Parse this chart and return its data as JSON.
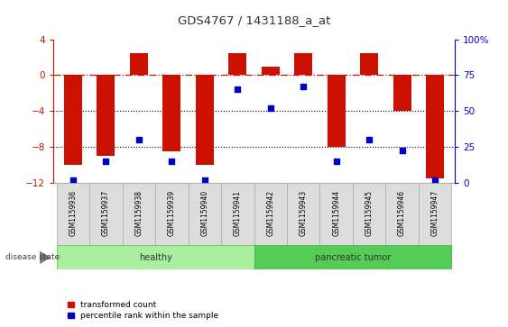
{
  "title": "GDS4767 / 1431188_a_at",
  "samples": [
    "GSM1159936",
    "GSM1159937",
    "GSM1159938",
    "GSM1159939",
    "GSM1159940",
    "GSM1159941",
    "GSM1159942",
    "GSM1159943",
    "GSM1159944",
    "GSM1159945",
    "GSM1159946",
    "GSM1159947"
  ],
  "transformed_count": [
    -10.0,
    -9.0,
    2.5,
    -8.5,
    -10.0,
    2.5,
    1.0,
    2.5,
    -8.0,
    2.5,
    -4.0,
    -11.5
  ],
  "percentile_rank": [
    2,
    15,
    30,
    15,
    2,
    65,
    52,
    67,
    15,
    30,
    23,
    2
  ],
  "bar_color": "#CC1100",
  "scatter_color": "#0000CC",
  "left_ylim": [
    -12,
    4
  ],
  "right_ylim": [
    0,
    100
  ],
  "left_yticks": [
    -12,
    -8,
    -4,
    0,
    4
  ],
  "right_yticks": [
    0,
    25,
    50,
    75,
    100
  ],
  "dotted_lines": [
    -4,
    -8
  ],
  "healthy_count": 6,
  "group_colors": {
    "healthy": "#AAEEA0",
    "pancreatic tumor": "#55CC55"
  },
  "disease_state_label": "disease state",
  "legend_labels": [
    "transformed count",
    "percentile rank within the sample"
  ]
}
